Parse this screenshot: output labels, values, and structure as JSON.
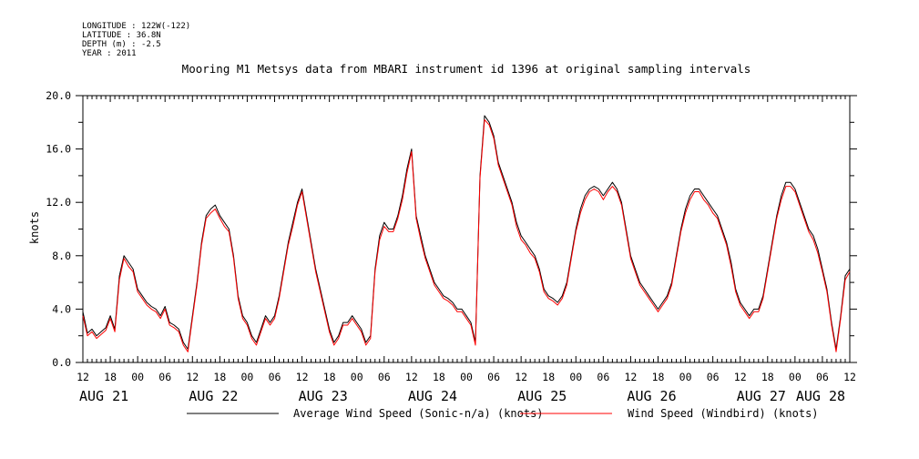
{
  "header": {
    "longitude": "LONGITUDE : 122W(-122)",
    "latitude": "LATITUDE : 36.8N",
    "depth": "DEPTH (m) : -2.5",
    "year": "YEAR : 2011"
  },
  "chart_data": {
    "type": "line",
    "title": "Mooring M1 Metsys data from MBARI instrument id 1396 at original sampling intervals",
    "ylabel": "knots",
    "xlabel": "",
    "ylim": [
      0,
      20
    ],
    "yticks": [
      "0.0",
      "4.0",
      "8.0",
      "12.0",
      "16.0",
      "20.0"
    ],
    "xlim_hours": [
      0,
      168
    ],
    "x_unit": "hours from AUG 21 12:00 (2011)",
    "xtick_labels": [
      "12",
      "18",
      "00",
      "06",
      "12",
      "18",
      "00",
      "06",
      "12",
      "18",
      "00",
      "06",
      "12",
      "18",
      "00",
      "06",
      "12",
      "18",
      "00",
      "06",
      "12",
      "18",
      "00",
      "06",
      "12",
      "18",
      "00",
      "06",
      "12"
    ],
    "date_labels": [
      {
        "label": "AUG 21",
        "hour": 0
      },
      {
        "label": "AUG 22",
        "hour": 24
      },
      {
        "label": "AUG 23",
        "hour": 48
      },
      {
        "label": "AUG 24",
        "hour": 72
      },
      {
        "label": "AUG 25",
        "hour": 96
      },
      {
        "label": "AUG 26",
        "hour": 120
      },
      {
        "label": "AUG 27",
        "hour": 144
      },
      {
        "label": "AUG 28",
        "hour": 157
      }
    ],
    "legend_position": "bottom",
    "series": [
      {
        "name": "Average Wind Speed (Sonic-n/a) (knots)",
        "color": "#000000",
        "x": [
          0,
          1,
          2,
          3,
          4,
          5,
          6,
          7,
          8,
          9,
          10,
          11,
          12,
          13,
          14,
          15,
          16,
          17,
          18,
          19,
          20,
          21,
          22,
          23,
          24,
          25,
          26,
          27,
          28,
          29,
          30,
          31,
          32,
          33,
          34,
          35,
          36,
          37,
          38,
          39,
          40,
          41,
          42,
          43,
          44,
          45,
          46,
          47,
          48,
          49,
          50,
          51,
          52,
          53,
          54,
          55,
          56,
          57,
          58,
          59,
          60,
          61,
          62,
          63,
          64,
          65,
          66,
          67,
          68,
          69,
          70,
          71,
          72,
          73,
          74,
          75,
          76,
          77,
          78,
          79,
          80,
          81,
          82,
          83,
          84,
          85,
          86,
          87,
          88,
          89,
          90,
          91,
          92,
          93,
          94,
          95,
          96,
          97,
          98,
          99,
          100,
          101,
          102,
          103,
          104,
          105,
          106,
          107,
          108,
          109,
          110,
          111,
          112,
          113,
          114,
          115,
          116,
          117,
          118,
          119,
          120,
          121,
          122,
          123,
          124,
          125,
          126,
          127,
          128,
          129,
          130,
          131,
          132,
          133,
          134,
          135,
          136,
          137,
          138,
          139,
          140,
          141,
          142,
          143,
          144,
          145,
          146,
          147,
          148,
          149,
          150,
          151,
          152,
          153,
          154,
          155,
          156,
          157,
          158,
          159,
          160,
          161,
          162,
          163,
          164,
          165,
          166,
          167,
          168
        ],
        "values": [
          3.8,
          2.2,
          2.5,
          2.0,
          2.3,
          2.6,
          3.5,
          2.5,
          6.5,
          8.0,
          7.5,
          7.0,
          5.5,
          5.0,
          4.5,
          4.2,
          4.0,
          3.5,
          4.2,
          3.0,
          2.8,
          2.5,
          1.5,
          1.0,
          3.5,
          6.0,
          9.0,
          11.0,
          11.5,
          11.8,
          11.0,
          10.5,
          10.0,
          8.0,
          5.0,
          3.5,
          3.0,
          2.0,
          1.5,
          2.5,
          3.5,
          3.0,
          3.5,
          5.0,
          7.0,
          9.0,
          10.5,
          12.0,
          13.0,
          11.0,
          9.0,
          7.0,
          5.5,
          4.0,
          2.5,
          1.5,
          2.0,
          3.0,
          3.0,
          3.5,
          3.0,
          2.5,
          1.5,
          2.0,
          7.0,
          9.5,
          10.5,
          10.0,
          10.0,
          11.0,
          12.5,
          14.5,
          16.0,
          11.0,
          9.5,
          8.0,
          7.0,
          6.0,
          5.5,
          5.0,
          4.8,
          4.5,
          4.0,
          4.0,
          3.5,
          3.0,
          1.5,
          14.0,
          18.5,
          18.0,
          17.0,
          15.0,
          14.0,
          13.0,
          12.0,
          10.5,
          9.5,
          9.0,
          8.5,
          8.0,
          7.0,
          5.5,
          5.0,
          4.8,
          4.5,
          5.0,
          6.0,
          8.0,
          10.0,
          11.5,
          12.5,
          13.0,
          13.2,
          13.0,
          12.5,
          13.0,
          13.5,
          13.0,
          12.0,
          10.0,
          8.0,
          7.0,
          6.0,
          5.5,
          5.0,
          4.5,
          4.0,
          4.5,
          5.0,
          6.0,
          8.0,
          10.0,
          11.5,
          12.5,
          13.0,
          13.0,
          12.5,
          12.0,
          11.5,
          11.0,
          10.0,
          9.0,
          7.5,
          5.5,
          4.5,
          4.0,
          3.5,
          4.0,
          4.0,
          5.0,
          7.0,
          9.0,
          11.0,
          12.5,
          13.5,
          13.5,
          13.0,
          12.0,
          11.0,
          10.0,
          9.5,
          8.5,
          7.0,
          5.5,
          3.0,
          1.0,
          3.5,
          6.5,
          7.0
        ]
      },
      {
        "name": "Wind Speed (Windbird) (knots)",
        "color": "#ff0000",
        "x": [
          0,
          1,
          2,
          3,
          4,
          5,
          6,
          7,
          8,
          9,
          10,
          11,
          12,
          13,
          14,
          15,
          16,
          17,
          18,
          19,
          20,
          21,
          22,
          23,
          24,
          25,
          26,
          27,
          28,
          29,
          30,
          31,
          32,
          33,
          34,
          35,
          36,
          37,
          38,
          39,
          40,
          41,
          42,
          43,
          44,
          45,
          46,
          47,
          48,
          49,
          50,
          51,
          52,
          53,
          54,
          55,
          56,
          57,
          58,
          59,
          60,
          61,
          62,
          63,
          64,
          65,
          66,
          67,
          68,
          69,
          70,
          71,
          72,
          73,
          74,
          75,
          76,
          77,
          78,
          79,
          80,
          81,
          82,
          83,
          84,
          85,
          86,
          87,
          88,
          89,
          90,
          91,
          92,
          93,
          94,
          95,
          96,
          97,
          98,
          99,
          100,
          101,
          102,
          103,
          104,
          105,
          106,
          107,
          108,
          109,
          110,
          111,
          112,
          113,
          114,
          115,
          116,
          117,
          118,
          119,
          120,
          121,
          122,
          123,
          124,
          125,
          126,
          127,
          128,
          129,
          130,
          131,
          132,
          133,
          134,
          135,
          136,
          137,
          138,
          139,
          140,
          141,
          142,
          143,
          144,
          145,
          146,
          147,
          148,
          149,
          150,
          151,
          152,
          153,
          154,
          155,
          156,
          157,
          158,
          159,
          160,
          161,
          162,
          163,
          164,
          165,
          166,
          167,
          168
        ],
        "values": [
          3.5,
          2.0,
          2.3,
          1.8,
          2.1,
          2.4,
          3.3,
          2.3,
          6.2,
          7.8,
          7.2,
          6.8,
          5.3,
          4.8,
          4.3,
          4.0,
          3.8,
          3.3,
          4.0,
          2.8,
          2.6,
          2.3,
          1.3,
          0.8,
          3.3,
          5.8,
          8.8,
          10.8,
          11.2,
          11.5,
          10.8,
          10.2,
          9.8,
          7.8,
          4.8,
          3.3,
          2.8,
          1.8,
          1.3,
          2.3,
          3.3,
          2.8,
          3.3,
          4.8,
          6.8,
          8.8,
          10.2,
          11.8,
          12.8,
          10.8,
          8.8,
          6.8,
          5.3,
          3.8,
          2.3,
          1.3,
          1.8,
          2.8,
          2.8,
          3.3,
          2.8,
          2.3,
          1.3,
          1.8,
          6.8,
          9.2,
          10.2,
          9.8,
          9.8,
          10.8,
          12.2,
          14.2,
          15.8,
          10.8,
          9.2,
          7.8,
          6.8,
          5.8,
          5.3,
          4.8,
          4.6,
          4.3,
          3.8,
          3.8,
          3.3,
          2.8,
          1.3,
          13.8,
          18.2,
          17.8,
          16.8,
          14.8,
          13.8,
          12.8,
          11.8,
          10.2,
          9.2,
          8.8,
          8.2,
          7.8,
          6.8,
          5.3,
          4.8,
          4.6,
          4.3,
          4.8,
          5.8,
          7.8,
          9.8,
          11.2,
          12.2,
          12.8,
          13.0,
          12.8,
          12.2,
          12.8,
          13.2,
          12.8,
          11.8,
          9.8,
          7.8,
          6.8,
          5.8,
          5.3,
          4.8,
          4.3,
          3.8,
          4.3,
          4.8,
          5.8,
          7.8,
          9.8,
          11.2,
          12.2,
          12.8,
          12.8,
          12.2,
          11.8,
          11.2,
          10.8,
          9.8,
          8.8,
          7.2,
          5.3,
          4.3,
          3.8,
          3.3,
          3.8,
          3.8,
          4.8,
          6.8,
          8.8,
          10.8,
          12.2,
          13.2,
          13.2,
          12.8,
          11.8,
          10.8,
          9.8,
          9.2,
          8.2,
          6.8,
          5.3,
          2.8,
          0.8,
          3.3,
          6.2,
          6.8
        ]
      }
    ]
  }
}
